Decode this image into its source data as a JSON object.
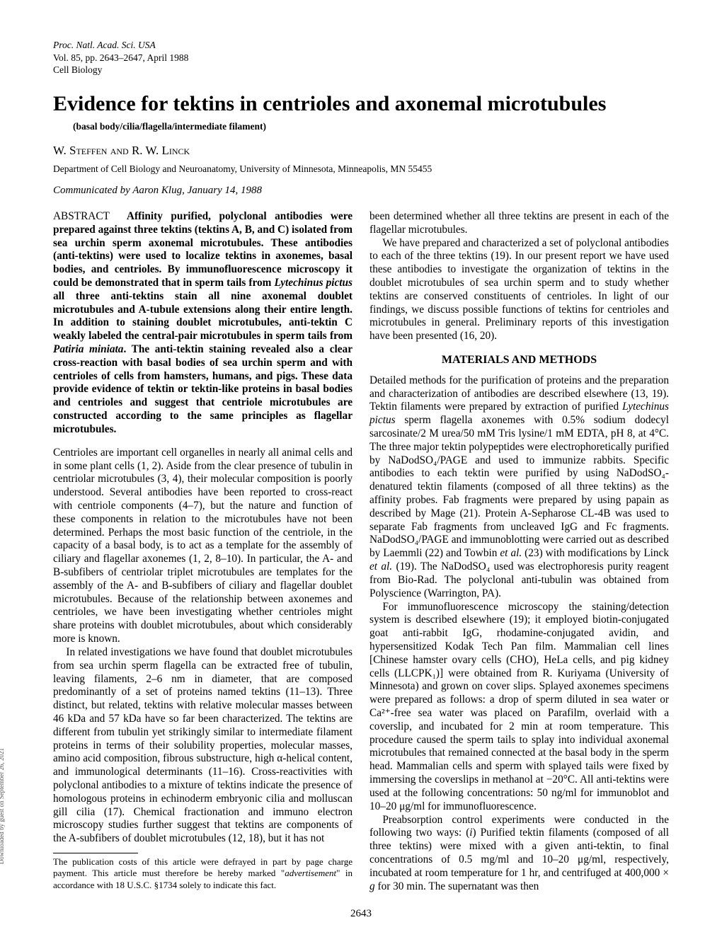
{
  "journal": {
    "line1": "Proc. Natl. Acad. Sci. USA",
    "line2": "Vol. 85, pp. 2643–2647, April 1988",
    "line3": "Cell Biology"
  },
  "title": "Evidence for tektins in centrioles and axonemal microtubules",
  "subtitle": "(basal body/cilia/flagella/intermediate filament)",
  "authors_html": "W. <span class=\"smallcaps\">Steffen</span> <span class=\"smallcaps\">and</span> R. W. <span class=\"smallcaps\">Linck</span>",
  "affiliation": "Department of Cell Biology and Neuroanatomy, University of Minnesota, Minneapolis, MN 55455",
  "communicated": "Communicated by Aaron Klug, January 14, 1988",
  "left_column": {
    "abstract_label": "ABSTRACT",
    "abstract_text": "Affinity purified, polyclonal antibodies were prepared against three tektins (tektins A, B, and C) isolated from sea urchin sperm axonemal microtubules. These antibodies (anti-tektins) were used to localize tektins in axonemes, basal bodies, and centrioles. By immunofluorescence microscopy it could be demonstrated that in sperm tails from <span class=\"italic\">Lytechinus pictus</span> all three anti-tektins stain all nine axonemal doublet microtubules and A-tubule extensions along their entire length. In addition to staining doublet microtubules, anti-tektin C weakly labeled the central-pair microtubules in sperm tails from <span class=\"italic\">Patiria miniata</span>. The anti-tektin staining revealed also a clear cross-reaction with basal bodies of sea urchin sperm and with centrioles of cells from hamsters, humans, and pigs. These data provide evidence of tektin or tektin-like proteins in basal bodies and centrioles and suggest that centriole microtubules are constructed according to the same principles as flagellar microtubules.",
    "p1": "Centrioles are important cell organelles in nearly all animal cells and in some plant cells (1, 2). Aside from the clear presence of tubulin in centriolar microtubules (3, 4), their molecular composition is poorly understood. Several antibodies have been reported to cross-react with centriole components (4–7), but the nature and function of these components in relation to the microtubules have not been determined. Perhaps the most basic function of the centriole, in the capacity of a basal body, is to act as a template for the assembly of ciliary and flagellar axonemes (1, 2, 8–10). In particular, the A- and B-subfibers of centriolar triplet microtubules are templates for the assembly of the A- and B-subfibers of ciliary and flagellar doublet microtubules. Because of the relationship between axonemes and centrioles, we have been investigating whether centrioles might share proteins with doublet microtubules, about which considerably more is known.",
    "p2": "In related investigations we have found that doublet microtubules from sea urchin sperm flagella can be extracted free of tubulin, leaving filaments, 2–6 nm in diameter, that are composed predominantly of a set of proteins named tektins (11–13). Three distinct, but related, tektins with relative molecular masses between 46 kDa and 57 kDa have so far been characterized. The tektins are different from tubulin yet strikingly similar to intermediate filament proteins in terms of their solubility properties, molecular masses, amino acid composition, fibrous substructure, high α-helical content, and immunological determinants (11–16). Cross-reactivities with polyclonal antibodies to a mixture of tektins indicate the presence of homologous proteins in echinoderm embryonic cilia and molluscan gill cilia (17). Chemical fractionation and immuno electron microscopy studies further suggest that tektins are components of the A-subfibers of doublet microtubules (12, 18), but it has not",
    "footnote": "The publication costs of this article were defrayed in part by page charge payment. This article must therefore be hereby marked \"<span class=\"italic\">advertisement</span>\" in accordance with 18 U.S.C. §1734 solely to indicate this fact."
  },
  "right_column": {
    "p1": "been determined whether all three tektins are present in each of the flagellar microtubules.",
    "p2": "We have prepared and characterized a set of polyclonal antibodies to each of the three tektins (19). In our present report we have used these antibodies to investigate the organization of tektins in the doublet microtubules of sea urchin sperm and to study whether tektins are conserved constituents of centrioles. In light of our findings, we discuss possible functions of tektins for centrioles and microtubules in general. Preliminary reports of this investigation have been presented (16, 20).",
    "section_head": "MATERIALS AND METHODS",
    "p3": "Detailed methods for the purification of proteins and the preparation and characterization of antibodies are described elsewhere (13, 19). Tektin filaments were prepared by extraction of purified <span class=\"italic\">Lytechinus pictus</span> sperm flagella axonemes with 0.5% sodium dodecyl sarcosinate/2 M urea/50 mM Tris lysine/1 mM EDTA, pH 8, at 4°C. The three major tektin polypeptides were electrophoretically purified by NaDodSO₄/PAGE and used to immunize rabbits. Specific antibodies to each tektin were purified by using NaDodSO₄-denatured tektin filaments (composed of all three tektins) as the affinity probes. Fab fragments were prepared by using papain as described by Mage (21). Protein A-Sepharose CL-4B was used to separate Fab fragments from uncleaved IgG and Fc fragments. NaDodSO₄/PAGE and immunoblotting were carried out as described by Laemmli (22) and Towbin <span class=\"italic\">et al.</span> (23) with modifications by Linck <span class=\"italic\">et al.</span> (19). The NaDodSO₄ used was electrophoresis purity reagent from Bio-Rad. The polyclonal anti-tubulin was obtained from Polyscience (Warrington, PA).",
    "p4": "For immunofluorescence microscopy the staining/detection system is described elsewhere (19); it employed biotin-conjugated goat anti-rabbit IgG, rhodamine-conjugated avidin, and hypersensitized Kodak Tech Pan film. Mammalian cell lines [Chinese hamster ovary cells (CHO), HeLa cells, and pig kidney cells (LLCPK₁)] were obtained from R. Kuriyama (University of Minnesota) and grown on cover slips. Splayed axonemes specimens were prepared as follows: a drop of sperm diluted in sea water or Ca²⁺-free sea water was placed on Parafilm, overlaid with a coverslip, and incubated for 2 min at room temperature. This procedure caused the sperm tails to splay into individual axonemal microtubules that remained connected at the basal body in the sperm head. Mammalian cells and sperm with splayed tails were fixed by immersing the coverslips in methanol at −20°C. All anti-tektins were used at the following concentrations: 50 ng/ml for immunoblot and 10–20 μg/ml for immunofluorescence.",
    "p5": "Preabsorption control experiments were conducted in the following two ways: (<span class=\"italic\">i</span>) Purified tektin filaments (composed of all three tektins) were mixed with a given anti-tektin, to final concentrations of 0.5 mg/ml and 10–20 μg/ml, respectively, incubated at room temperature for 1 hr, and centrifuged at 400,000 × <span class=\"italic\">g</span> for 30 min. The supernatant was then"
  },
  "page_number": "2643",
  "side_label": "Downloaded by guest on September 26, 2021"
}
